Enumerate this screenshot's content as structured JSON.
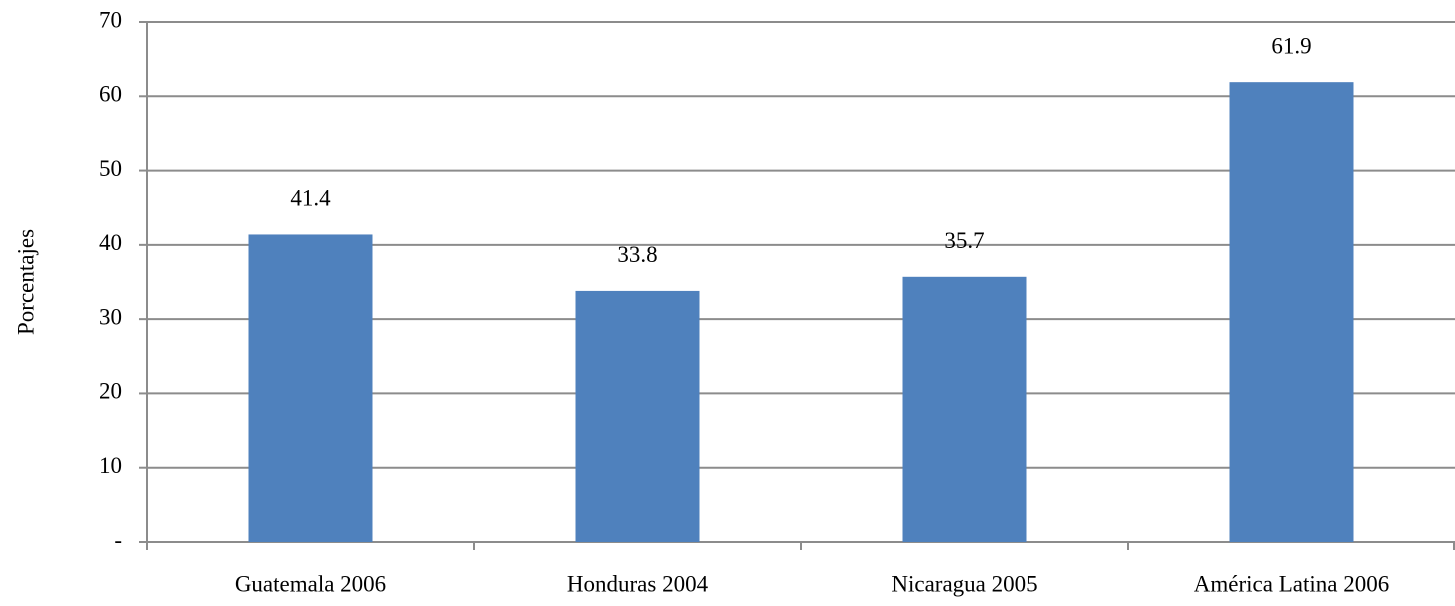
{
  "chart_data": {
    "type": "bar",
    "y_label": "Porcentajes",
    "categories": [
      "Guatemala 2006",
      "Honduras 2004",
      "Nicaragua 2005",
      "América Latina 2006"
    ],
    "values": [
      41.4,
      33.8,
      35.7,
      61.9
    ],
    "color": "#4f81bd",
    "ylim": [
      0,
      70
    ],
    "yticks": [
      {
        "value": 0,
        "label": "-"
      },
      10,
      20,
      30,
      40,
      50,
      60,
      70
    ],
    "grid": true
  }
}
